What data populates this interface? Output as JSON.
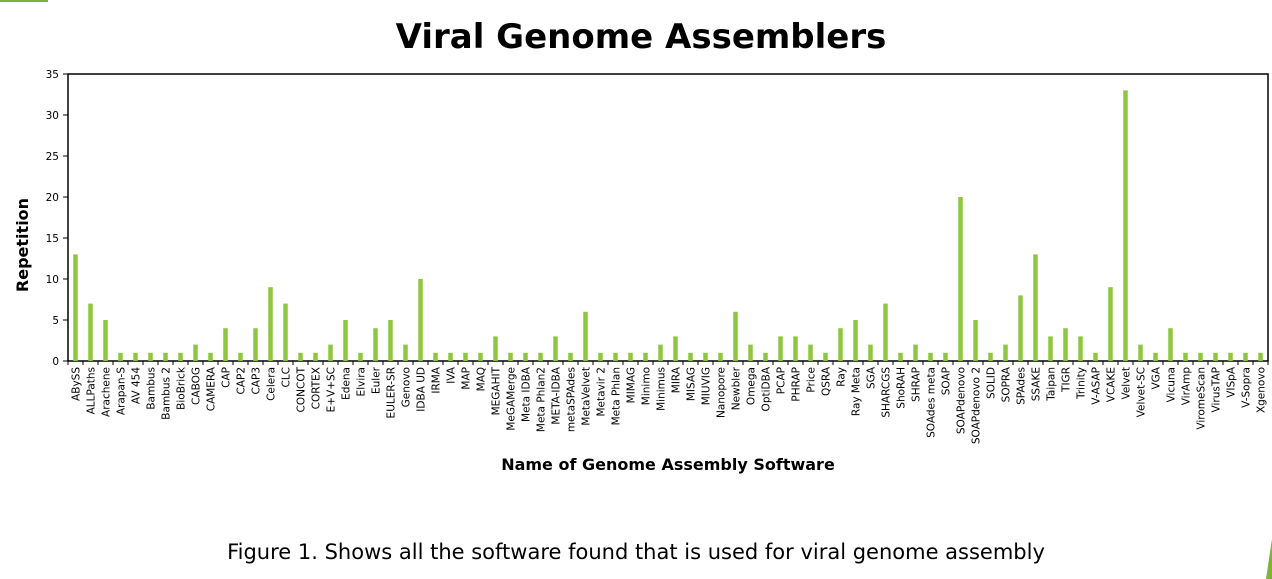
{
  "accent_color": "#8dc63f",
  "caption": "Figure 1. Shows all the software found that is used for viral genome assembly",
  "chart_data": {
    "type": "bar",
    "title": "Viral Genome Assemblers",
    "xlabel": "Name of Genome Assembly Software",
    "ylabel": "Repetition",
    "ylim": [
      0,
      35
    ],
    "yticks": [
      0,
      5,
      10,
      15,
      20,
      25,
      30,
      35
    ],
    "grid": false,
    "legend": "none",
    "bar_color": "#8dc63f",
    "categories": [
      "ABySS",
      "ALLPaths",
      "Arachene",
      "Arapan-S",
      "AV 454",
      "Bambus",
      "Bambus 2",
      "BioBrick",
      "CABOG",
      "CAMERA",
      "CAP",
      "CAP2",
      "CAP3",
      "Celera",
      "CLC",
      "CONCOT",
      "CORTEX",
      "E+V+SC",
      "Edena",
      "Elvira",
      "Euler",
      "EULER-SR",
      "Genovo",
      "IDBA UD",
      "IRMA",
      "IVA",
      "MAP",
      "MAQ",
      "MEGAHIT",
      "MeGAMerge",
      "Meta IDBA",
      "Meta Phlan2",
      "META-IDBA",
      "metaSPAdes",
      "MetaVelvet",
      "Metavir 2",
      "Meta Phlan",
      "MIMAG",
      "Minimo",
      "Minimus",
      "MIRA",
      "MISAG",
      "MIUVIG",
      "Nanopore",
      "Newbler",
      "Omega",
      "OptiDBA",
      "PCAP",
      "PHRAP",
      "Price",
      "QSRA",
      "Ray",
      "Ray Meta",
      "SGA",
      "SHARCGS",
      "ShoRAH",
      "SHRAP",
      "SOAdes meta",
      "SOAP",
      "SOAPdenovo",
      "SOAPdenovo 2",
      "SOLID",
      "SOPRA",
      "SPAdes",
      "SSAKE",
      "Taipan",
      "TIGR",
      "Trinity",
      "V-ASAP",
      "VCAKE",
      "Velvet",
      "Velvet-SC",
      "VGA",
      "Vicuna",
      "VirAmp",
      "ViromeScan",
      "VirusTAP",
      "VISpA",
      "V-Sopra",
      "Xgenovo"
    ],
    "values": [
      13,
      7,
      5,
      1,
      1,
      1,
      1,
      1,
      2,
      1,
      4,
      1,
      4,
      9,
      7,
      1,
      1,
      2,
      5,
      1,
      4,
      5,
      2,
      10,
      1,
      1,
      1,
      1,
      3,
      1,
      1,
      1,
      3,
      1,
      6,
      1,
      1,
      1,
      1,
      2,
      3,
      1,
      1,
      1,
      6,
      2,
      1,
      3,
      3,
      2,
      1,
      4,
      5,
      2,
      7,
      1,
      2,
      1,
      1,
      20,
      5,
      1,
      2,
      8,
      13,
      3,
      4,
      3,
      1,
      9,
      33,
      2,
      1,
      4,
      1,
      1,
      1,
      1,
      1,
      1
    ]
  }
}
